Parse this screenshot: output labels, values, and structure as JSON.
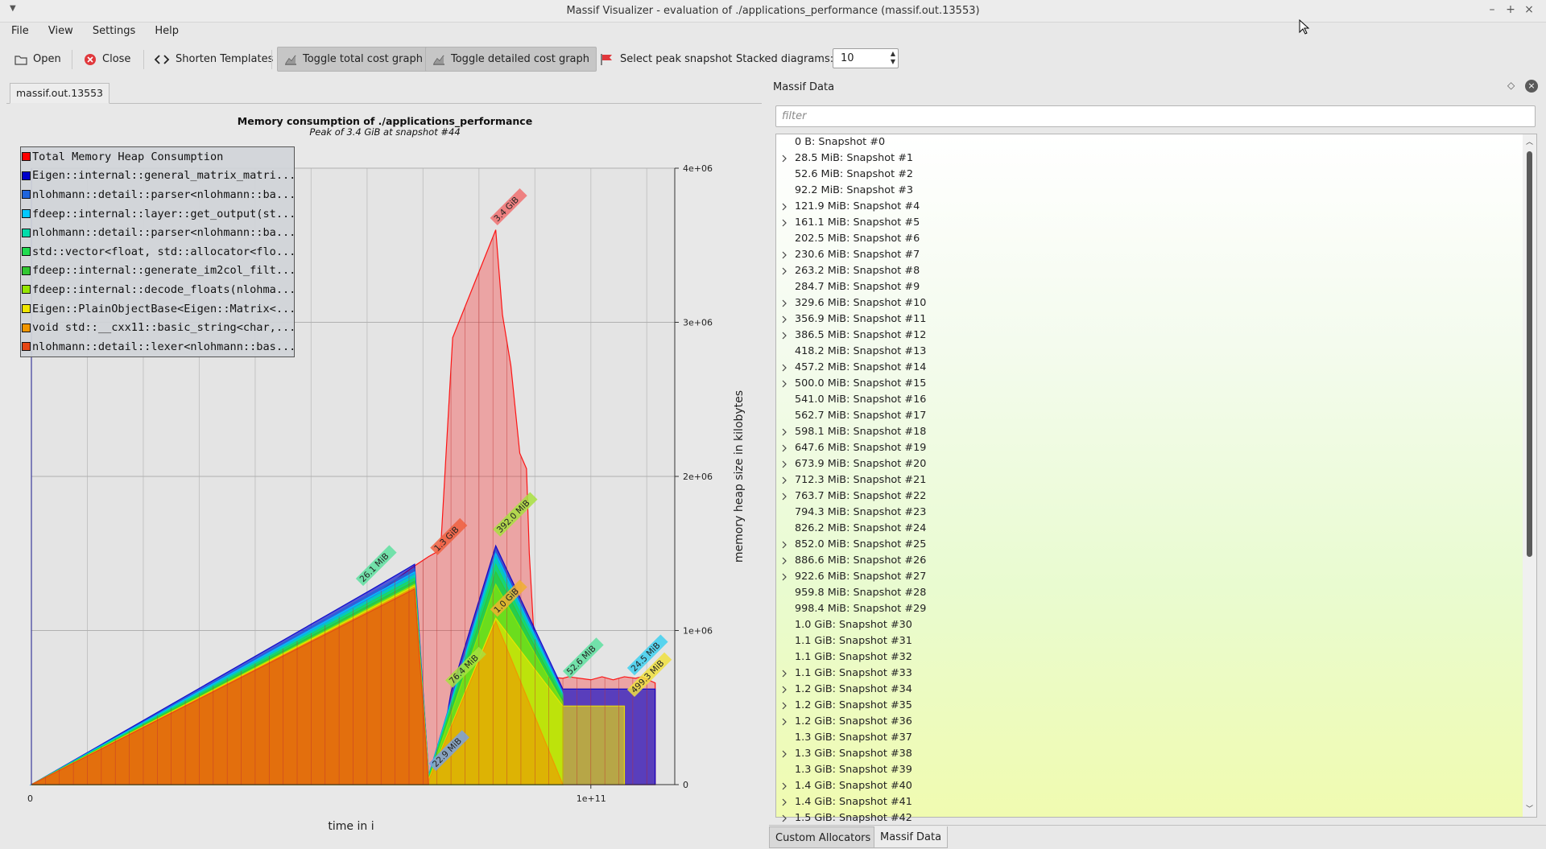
{
  "window": {
    "title": "Massif Visualizer - evaluation of ./applications_performance (massif.out.13553)"
  },
  "menu": [
    "File",
    "View",
    "Settings",
    "Help"
  ],
  "toolbar": {
    "open": "Open",
    "close": "Close",
    "shorten": "Shorten Templates",
    "toggle_total": "Toggle total cost graph",
    "toggle_detailed": "Toggle detailed cost graph",
    "select_peak": "Select peak snapshot",
    "stacked_label": "Stacked diagrams:",
    "stacked_value": "10"
  },
  "file_tab": "massif.out.13553",
  "colors": {
    "total": "#ff0000",
    "legend_border": "#555555"
  },
  "chart": {
    "title": "Memory consumption of ./applications_performance",
    "subtitle": "Peak of 3.4 GiB at snapshot #44",
    "xlabel": "time in i",
    "ylabel": "memory heap size in kilobytes",
    "x_ticks": [
      "0",
      "1e+11"
    ],
    "y_ticks": [
      "0",
      "1e+06",
      "2e+06",
      "3e+06",
      "4e+06"
    ]
  },
  "chart_data": {
    "type": "area",
    "title": "Memory consumption of ./applications_performance",
    "subtitle": "Peak of 3.4 GiB at snapshot #44",
    "xlabel": "time in i",
    "ylabel": "memory heap size in kilobytes",
    "xlim": [
      0,
      115000000000
    ],
    "ylim": [
      0,
      4000000
    ],
    "legend_position": "top-left",
    "grid": true,
    "series": [
      {
        "name": "Total Memory Heap Consumption",
        "color": "#ff0000",
        "x": [
          0,
          24000000000,
          48000000000,
          61000000000,
          68500000000,
          71000000000,
          72500000000,
          73200000000,
          75300000000,
          83000000000,
          84200000000,
          85700000000,
          87300000000,
          88500000000,
          89000000000,
          89700000000,
          90800000000,
          92200000000,
          95000000000,
          96000000000,
          100000000000,
          102000000000,
          104000000000,
          106000000000,
          108000000000,
          109000000000,
          111500000000
        ],
        "y": [
          0,
          480000,
          940000,
          1220000,
          1420000,
          1480000,
          1510000,
          1560000,
          2900000,
          3600000,
          3050000,
          2720000,
          2150000,
          2050000,
          1500000,
          1050000,
          660000,
          700000,
          690000,
          700000,
          680000,
          700000,
          680000,
          700000,
          690000,
          700000,
          660000
        ]
      },
      {
        "name": "Eigen::internal::general_matrix_matri...",
        "color": "#0000cc",
        "x": [
          0,
          61000000000,
          68500000000,
          71000000000,
          72500000000,
          75000000000,
          83000000000,
          95000000000,
          106000000000,
          111500000000
        ],
        "y": [
          0,
          1270000,
          1430000,
          65000,
          65000,
          600000,
          1550000,
          620000,
          620000,
          620000
        ]
      },
      {
        "name": "nlohmann::detail::parser<nlohmann::ba...",
        "color": "#1e64dc",
        "x": [
          0,
          68500000000,
          71000000000,
          83000000000,
          95000000000
        ],
        "y": [
          0,
          1400000,
          60000,
          1520000,
          600000
        ]
      },
      {
        "name": "fdeep::internal::layer::get_output(st...",
        "color": "#00c8ff",
        "x": [
          0,
          68500000000,
          71000000000,
          83000000000,
          95000000000
        ],
        "y": [
          0,
          1380000,
          55000,
          1500000,
          590000
        ]
      },
      {
        "name": "nlohmann::detail::parser<nlohmann::ba...",
        "color": "#00dcaa",
        "x": [
          0,
          68500000000,
          71000000000,
          83000000000,
          95000000000
        ],
        "y": [
          0,
          1360000,
          50000,
          1470000,
          580000
        ]
      },
      {
        "name": "std::vector<float, std::allocator<flo...",
        "color": "#20dc50",
        "x": [
          0,
          68500000000,
          71000000000,
          83000000000,
          95000000000
        ],
        "y": [
          0,
          1340000,
          45000,
          1430000,
          570000
        ]
      },
      {
        "name": "fdeep::internal::generate_im2col_filt...",
        "color": "#32c832",
        "x": [
          0,
          68500000000,
          71000000000,
          83000000000,
          95000000000
        ],
        "y": [
          0,
          1320000,
          40000,
          1380000,
          550000
        ]
      },
      {
        "name": "fdeep::internal::decode_floats(nlohma...",
        "color": "#96e600",
        "x": [
          0,
          68500000000,
          71000000000,
          83000000000,
          95000000000
        ],
        "y": [
          0,
          1300000,
          35000,
          1300000,
          530000
        ]
      },
      {
        "name": "Eigen::PlainObjectBase<Eigen::Matrix<...",
        "color": "#f0e600",
        "x": [
          0,
          68500000000,
          71000000000,
          83000000000,
          95000000000,
          106000000000
        ],
        "y": [
          0,
          1290000,
          30000,
          1080000,
          510000,
          510000
        ]
      },
      {
        "name": "void std::__cxx11::basic_string<char,...",
        "color": "#f09600",
        "x": [
          0,
          68500000000,
          71000000000,
          83000000000,
          95000000000
        ],
        "y": [
          0,
          1280000,
          25000,
          1060000,
          0
        ]
      },
      {
        "name": "nlohmann::detail::lexer<nlohmann::bas...",
        "color": "#e64614",
        "x": [
          0,
          68500000000,
          71000000000
        ],
        "y": [
          0,
          1270000,
          0
        ]
      }
    ],
    "annotations": [
      {
        "text": "26.1 MiB",
        "x": 59000000000,
        "y": 1300000,
        "color": "#5ee0a0"
      },
      {
        "text": "1.3 GiB",
        "x": 72300000000,
        "y": 1500000,
        "color": "#f06040"
      },
      {
        "text": "3.4 GiB",
        "x": 83000000000,
        "y": 3640000,
        "color": "#f07070"
      },
      {
        "text": "392.0 MiB",
        "x": 83500000000,
        "y": 1620000,
        "color": "#a8e040"
      },
      {
        "text": "1.0 GiB",
        "x": 83000000000,
        "y": 1100000,
        "color": "#f0b030"
      },
      {
        "text": "76.4 MiB",
        "x": 75000000000,
        "y": 640000,
        "color": "#a8e040"
      },
      {
        "text": "22.9 MiB",
        "x": 72000000000,
        "y": 100000,
        "color": "#7aa0e0"
      },
      {
        "text": "52.6 MiB",
        "x": 96000000000,
        "y": 700000,
        "color": "#5ee0a0"
      },
      {
        "text": "24.5 MiB",
        "x": 107500000000,
        "y": 720000,
        "color": "#40d0f0"
      },
      {
        "text": "499.3 MiB",
        "x": 107500000000,
        "y": 580000,
        "color": "#f0e040"
      }
    ]
  },
  "dock": {
    "title": "Massif Data",
    "filter_placeholder": "filter",
    "snapshots": [
      {
        "label": "0 B: Snapshot #0",
        "expandable": false
      },
      {
        "label": "28.5 MiB: Snapshot #1",
        "expandable": true
      },
      {
        "label": "52.6 MiB: Snapshot #2",
        "expandable": false
      },
      {
        "label": "92.2 MiB: Snapshot #3",
        "expandable": false
      },
      {
        "label": "121.9 MiB: Snapshot #4",
        "expandable": true
      },
      {
        "label": "161.1 MiB: Snapshot #5",
        "expandable": true
      },
      {
        "label": "202.5 MiB: Snapshot #6",
        "expandable": false
      },
      {
        "label": "230.6 MiB: Snapshot #7",
        "expandable": true
      },
      {
        "label": "263.2 MiB: Snapshot #8",
        "expandable": true
      },
      {
        "label": "284.7 MiB: Snapshot #9",
        "expandable": false
      },
      {
        "label": "329.6 MiB: Snapshot #10",
        "expandable": true
      },
      {
        "label": "356.9 MiB: Snapshot #11",
        "expandable": true
      },
      {
        "label": "386.5 MiB: Snapshot #12",
        "expandable": true
      },
      {
        "label": "418.2 MiB: Snapshot #13",
        "expandable": false
      },
      {
        "label": "457.2 MiB: Snapshot #14",
        "expandable": true
      },
      {
        "label": "500.0 MiB: Snapshot #15",
        "expandable": true
      },
      {
        "label": "541.0 MiB: Snapshot #16",
        "expandable": false
      },
      {
        "label": "562.7 MiB: Snapshot #17",
        "expandable": false
      },
      {
        "label": "598.1 MiB: Snapshot #18",
        "expandable": true
      },
      {
        "label": "647.6 MiB: Snapshot #19",
        "expandable": true
      },
      {
        "label": "673.9 MiB: Snapshot #20",
        "expandable": true
      },
      {
        "label": "712.3 MiB: Snapshot #21",
        "expandable": true
      },
      {
        "label": "763.7 MiB: Snapshot #22",
        "expandable": true
      },
      {
        "label": "794.3 MiB: Snapshot #23",
        "expandable": false
      },
      {
        "label": "826.2 MiB: Snapshot #24",
        "expandable": false
      },
      {
        "label": "852.0 MiB: Snapshot #25",
        "expandable": true
      },
      {
        "label": "886.6 MiB: Snapshot #26",
        "expandable": true
      },
      {
        "label": "922.6 MiB: Snapshot #27",
        "expandable": true
      },
      {
        "label": "959.8 MiB: Snapshot #28",
        "expandable": false
      },
      {
        "label": "998.4 MiB: Snapshot #29",
        "expandable": false
      },
      {
        "label": "1.0 GiB: Snapshot #30",
        "expandable": false
      },
      {
        "label": "1.1 GiB: Snapshot #31",
        "expandable": false
      },
      {
        "label": "1.1 GiB: Snapshot #32",
        "expandable": false
      },
      {
        "label": "1.1 GiB: Snapshot #33",
        "expandable": true
      },
      {
        "label": "1.2 GiB: Snapshot #34",
        "expandable": true
      },
      {
        "label": "1.2 GiB: Snapshot #35",
        "expandable": true
      },
      {
        "label": "1.2 GiB: Snapshot #36",
        "expandable": true
      },
      {
        "label": "1.3 GiB: Snapshot #37",
        "expandable": false
      },
      {
        "label": "1.3 GiB: Snapshot #38",
        "expandable": true
      },
      {
        "label": "1.3 GiB: Snapshot #39",
        "expandable": false
      },
      {
        "label": "1.4 GiB: Snapshot #40",
        "expandable": true
      },
      {
        "label": "1.4 GiB: Snapshot #41",
        "expandable": true
      },
      {
        "label": "1.5 GiB: Snapshot #42",
        "expandable": true
      }
    ]
  },
  "bottom_tabs": [
    "Custom Allocators",
    "Massif Data"
  ]
}
